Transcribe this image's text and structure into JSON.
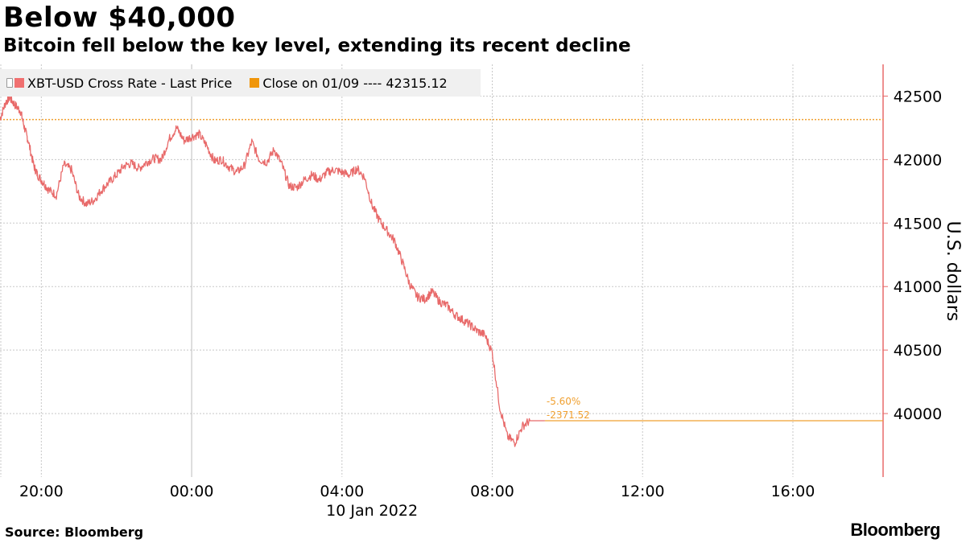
{
  "header": {
    "title": "Below $40,000",
    "subtitle": "Bitcoin fell below the key level, extending its recent decline"
  },
  "footer": {
    "source": "Source:  Bloomberg",
    "brand": "Bloomberg"
  },
  "colors": {
    "price_line": "#e86a6a",
    "close_line": "#f0a030",
    "axis": "#e86a6a",
    "grid": "#c8c8c8",
    "legend_bg": "#f0f0f0"
  },
  "legend": [
    {
      "label": "XBT-USD Cross Rate - Last Price",
      "color": "#f07070"
    },
    {
      "label": "Close on 01/09 ---- 42315.12",
      "color": "#f0960a"
    }
  ],
  "annotations": {
    "pct_change": "-5.60%",
    "abs_change": "-2371.52"
  },
  "chart_data": {
    "type": "line",
    "ylabel": "U.S. dollars",
    "xlabel": "10 Jan 2022",
    "ylim": [
      39500,
      42750
    ],
    "xlim_hours": [
      -5.1,
      18.4
    ],
    "y_ticks": [
      40000,
      40500,
      41000,
      41500,
      42000,
      42500
    ],
    "x_ticks": [
      {
        "hour": -4,
        "label": "20:00"
      },
      {
        "hour": 0,
        "label": "00:00"
      },
      {
        "hour": 4,
        "label": "04:00"
      },
      {
        "hour": 8,
        "label": "08:00"
      },
      {
        "hour": 12,
        "label": "12:00"
      },
      {
        "hour": 16,
        "label": "16:00"
      }
    ],
    "grid": true,
    "legend_position": "top-left",
    "reference_line": {
      "name": "Close on 01/09",
      "value": 42315.12
    },
    "last_value": 39943.6,
    "series": [
      {
        "name": "XBT-USD Cross Rate - Last Price",
        "x": [
          -5.1,
          -4.95,
          -4.85,
          -4.7,
          -4.55,
          -4.45,
          -4.35,
          -4.2,
          -4.1,
          -3.95,
          -3.8,
          -3.6,
          -3.4,
          -3.2,
          -3.0,
          -2.8,
          -2.6,
          -2.4,
          -2.2,
          -2.0,
          -1.8,
          -1.6,
          -1.4,
          -1.2,
          -1.0,
          -0.8,
          -0.6,
          -0.4,
          -0.2,
          0.0,
          0.2,
          0.4,
          0.6,
          0.8,
          1.0,
          1.2,
          1.4,
          1.6,
          1.8,
          2.0,
          2.2,
          2.4,
          2.6,
          2.8,
          3.0,
          3.2,
          3.4,
          3.6,
          3.8,
          4.0,
          4.2,
          4.4,
          4.6,
          4.8,
          5.0,
          5.2,
          5.4,
          5.6,
          5.8,
          6.0,
          6.2,
          6.4,
          6.6,
          6.8,
          7.0,
          7.2,
          7.4,
          7.6,
          7.8,
          8.0,
          8.2,
          8.4,
          8.6,
          8.8,
          9.0,
          9.1,
          9.2,
          9.25,
          9.3,
          9.35,
          9.4
        ],
        "values": [
          42320,
          42450,
          42490,
          42430,
          42380,
          42250,
          42150,
          41950,
          41880,
          41820,
          41760,
          41720,
          41960,
          41920,
          41710,
          41650,
          41680,
          41760,
          41820,
          41880,
          41950,
          41970,
          41930,
          41980,
          42010,
          42000,
          42160,
          42250,
          42150,
          42180,
          42200,
          42110,
          41990,
          42000,
          41940,
          41900,
          41950,
          42140,
          42000,
          41980,
          42080,
          41960,
          41790,
          41780,
          41840,
          41880,
          41840,
          41900,
          41920,
          41900,
          41880,
          41930,
          41860,
          41640,
          41520,
          41440,
          41360,
          41200,
          41020,
          40920,
          40900,
          40960,
          40880,
          40850,
          40780,
          40740,
          40700,
          40650,
          40620,
          40480,
          40050,
          39820,
          39770,
          39900,
          39943.6,
          39943.6,
          39943.6,
          39943.6,
          39943.6,
          39943.6,
          39943.6
        ]
      }
    ]
  }
}
